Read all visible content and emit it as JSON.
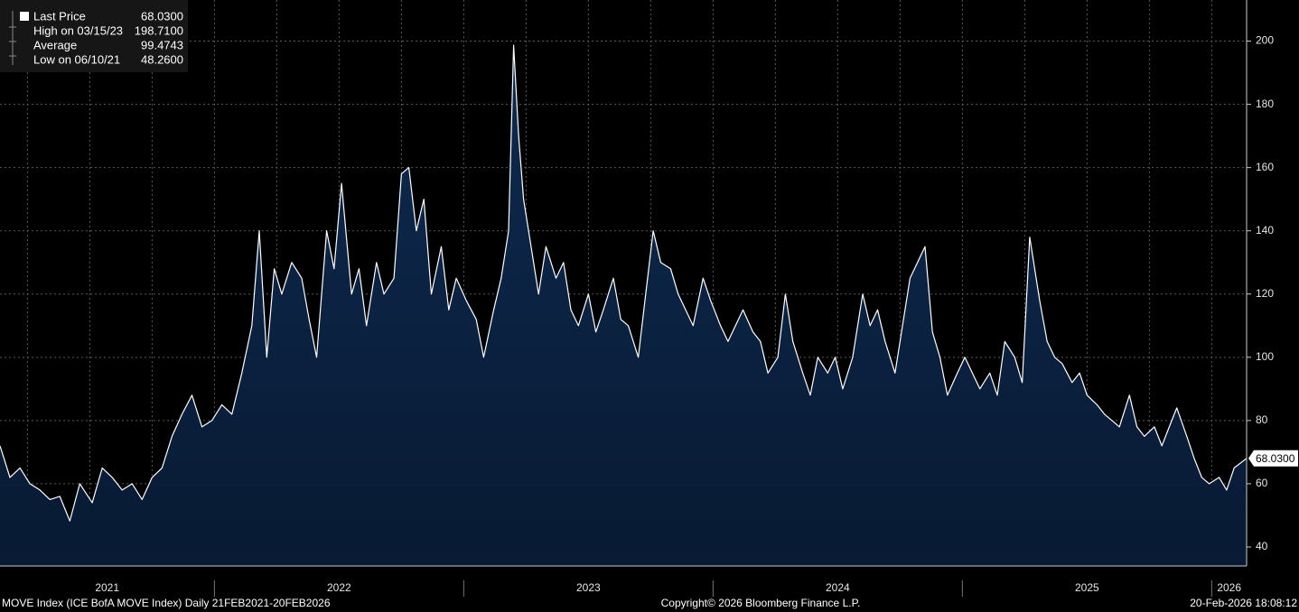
{
  "chart_data": {
    "type": "area",
    "legend": [
      {
        "label": "Last Price",
        "value": "68.0300"
      },
      {
        "label": "High on 03/15/23",
        "value": "198.7100"
      },
      {
        "label": "Average",
        "value": "99.4743"
      },
      {
        "label": "Low on 06/10/21",
        "value": "48.2600"
      }
    ],
    "last_value": 68.03,
    "last_value_label": "68.0300",
    "footer_left": "MOVE Index (ICE BofA MOVE Index) Daily 21FEB2021-20FEB2026",
    "footer_center": "Copyright© 2026 Bloomberg Finance L.P.",
    "footer_right": "20-Feb-2026 18:08:12",
    "line_color": "#ffffff",
    "fill_color": "#0b2445",
    "xlim": [
      2021.14,
      2026.14
    ],
    "xticks": [
      2021.25,
      2021.5,
      2021.75,
      2022,
      2022.25,
      2022.5,
      2022.75,
      2023,
      2023.25,
      2023.5,
      2023.75,
      2024,
      2024.25,
      2024.5,
      2024.75,
      2025,
      2025.25,
      2025.5,
      2025.75,
      2026
    ],
    "year_labels": [
      "2021",
      "2022",
      "2023",
      "2024",
      "2025",
      "2026"
    ],
    "ylim": [
      34,
      213
    ],
    "yticks": [
      40,
      60,
      80,
      100,
      120,
      140,
      160,
      180,
      200
    ],
    "grid": true,
    "x": [
      2021.14,
      2021.18,
      2021.22,
      2021.26,
      2021.3,
      2021.34,
      2021.38,
      2021.42,
      2021.46,
      2021.51,
      2021.55,
      2021.59,
      2021.63,
      2021.67,
      2021.71,
      2021.75,
      2021.79,
      2021.83,
      2021.87,
      2021.91,
      2021.95,
      2021.99,
      2022.03,
      2022.07,
      2022.11,
      2022.15,
      2022.18,
      2022.21,
      2022.24,
      2022.27,
      2022.31,
      2022.35,
      2022.38,
      2022.41,
      2022.45,
      2022.48,
      2022.51,
      2022.55,
      2022.58,
      2022.61,
      2022.65,
      2022.68,
      2022.72,
      2022.75,
      2022.78,
      2022.81,
      2022.84,
      2022.87,
      2022.91,
      2022.94,
      2022.97,
      2023.01,
      2023.05,
      2023.08,
      2023.12,
      2023.15,
      2023.18,
      2023.2,
      2023.22,
      2023.24,
      2023.27,
      2023.3,
      2023.33,
      2023.37,
      2023.4,
      2023.43,
      2023.46,
      2023.5,
      2023.53,
      2023.56,
      2023.6,
      2023.63,
      2023.66,
      2023.7,
      2023.73,
      2023.76,
      2023.79,
      2023.83,
      2023.86,
      2023.89,
      2023.92,
      2023.96,
      2023.99,
      2024.03,
      2024.06,
      2024.09,
      2024.12,
      2024.16,
      2024.19,
      2024.22,
      2024.26,
      2024.29,
      2024.32,
      2024.36,
      2024.39,
      2024.42,
      2024.46,
      2024.49,
      2024.52,
      2024.56,
      2024.6,
      2024.63,
      2024.66,
      2024.69,
      2024.73,
      2024.76,
      2024.79,
      2024.82,
      2024.85,
      2024.88,
      2024.91,
      2024.94,
      2024.98,
      2025.01,
      2025.04,
      2025.07,
      2025.11,
      2025.14,
      2025.17,
      2025.21,
      2025.24,
      2025.27,
      2025.31,
      2025.34,
      2025.37,
      2025.4,
      2025.44,
      2025.47,
      2025.5,
      2025.54,
      2025.57,
      2025.6,
      2025.63,
      2025.67,
      2025.7,
      2025.73,
      2025.77,
      2025.8,
      2025.83,
      2025.86,
      2025.9,
      2025.93,
      2025.96,
      2025.99,
      2026.03,
      2026.06,
      2026.09,
      2026.14
    ],
    "values": [
      72,
      62,
      65,
      60,
      58,
      55,
      56,
      48.26,
      60,
      54,
      65,
      62,
      58,
      60,
      55,
      62,
      65,
      75,
      82,
      88,
      78,
      80,
      85,
      82,
      95,
      110,
      140,
      100,
      128,
      120,
      130,
      125,
      112,
      100,
      140,
      128,
      155,
      120,
      128,
      110,
      130,
      120,
      125,
      158,
      160,
      140,
      150,
      120,
      135,
      115,
      125,
      118,
      112,
      100,
      115,
      125,
      140,
      198.71,
      170,
      150,
      135,
      120,
      135,
      125,
      130,
      115,
      110,
      120,
      108,
      115,
      125,
      112,
      110,
      100,
      120,
      140,
      130,
      128,
      120,
      115,
      110,
      125,
      118,
      110,
      105,
      110,
      115,
      108,
      105,
      95,
      100,
      120,
      105,
      95,
      88,
      100,
      95,
      100,
      90,
      100,
      120,
      110,
      115,
      105,
      95,
      110,
      125,
      130,
      135,
      108,
      100,
      88,
      95,
      100,
      95,
      90,
      95,
      88,
      105,
      100,
      92,
      138,
      118,
      105,
      100,
      98,
      92,
      95,
      88,
      85,
      82,
      80,
      78,
      88,
      78,
      75,
      78,
      72,
      78,
      84,
      75,
      68,
      62,
      60,
      62,
      58,
      65,
      68.03
    ]
  }
}
